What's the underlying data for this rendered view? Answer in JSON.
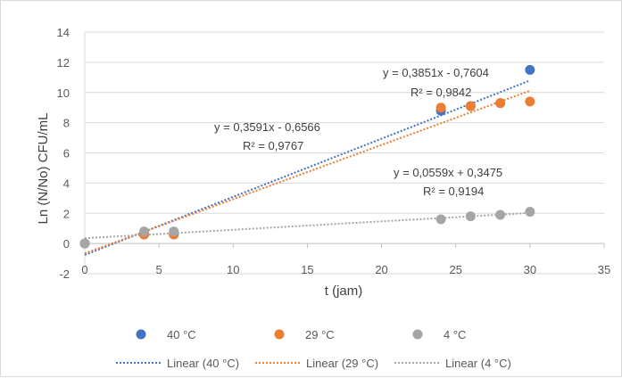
{
  "chart_data": {
    "type": "scatter",
    "xlabel": "t (jam)",
    "ylabel": "Ln (N/No) CFU/mL",
    "xlim": [
      0,
      35
    ],
    "ylim": [
      -2,
      14
    ],
    "x_ticks": [
      0,
      5,
      10,
      15,
      20,
      25,
      30,
      35
    ],
    "y_ticks": [
      -2,
      0,
      2,
      4,
      6,
      8,
      10,
      12,
      14
    ],
    "x_tick_labels": [
      "0",
      "5",
      "10",
      "15",
      "20",
      "25",
      "30",
      "35"
    ],
    "y_tick_labels": [
      "-2",
      "0",
      "2",
      "4",
      "6",
      "8",
      "10",
      "12",
      "14"
    ],
    "grid": "horizontal",
    "legend_position": "bottom",
    "series": [
      {
        "name": "40 °C",
        "color": "#4472C4",
        "x": [
          0,
          4,
          6,
          24,
          26,
          28,
          30
        ],
        "y": [
          0,
          0.6,
          0.6,
          8.8,
          9.1,
          9.3,
          11.5
        ]
      },
      {
        "name": "29 °C",
        "color": "#ED7D31",
        "x": [
          0,
          4,
          6,
          24,
          26,
          28,
          30
        ],
        "y": [
          0,
          0.6,
          0.6,
          9.0,
          9.1,
          9.3,
          9.4
        ]
      },
      {
        "name": "4 °C",
        "color": "#A5A5A5",
        "x": [
          0,
          4,
          6,
          24,
          26,
          28,
          30
        ],
        "y": [
          0,
          0.8,
          0.8,
          1.6,
          1.8,
          1.9,
          2.1
        ]
      }
    ],
    "trendlines": [
      {
        "name": "Linear (40 °C)",
        "color": "#4472C4",
        "slope": 0.3851,
        "intercept": -0.7604,
        "x_range": [
          0,
          30
        ],
        "equation": "y = 0,3851x - 0,7604",
        "r2": "R² = 0,9842"
      },
      {
        "name": "Linear (29 °C)",
        "color": "#ED7D31",
        "slope": 0.3591,
        "intercept": -0.6566,
        "x_range": [
          0,
          30
        ],
        "equation": "y = 0,3591x - 0,6566",
        "r2": "R² = 0,9767"
      },
      {
        "name": "Linear (4 °C)",
        "color": "#A5A5A5",
        "slope": 0.0559,
        "intercept": 0.3475,
        "x_range": [
          0,
          30
        ],
        "equation": "y = 0,0559x + 0,3475",
        "r2": "R² = 0,9194"
      }
    ]
  }
}
